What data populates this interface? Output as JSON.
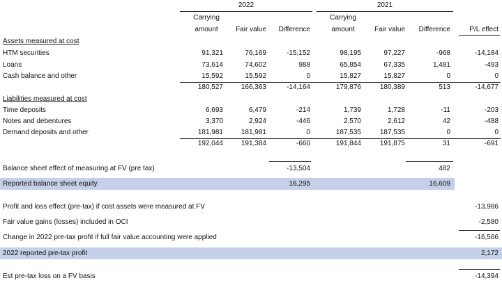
{
  "years": [
    "2022",
    "2021"
  ],
  "column_headers": {
    "carrying_1": "Carrying",
    "carrying_2": "amount",
    "fair_value": "Fair value",
    "difference": "Difference",
    "pl_effect": "P/L effect"
  },
  "assets": {
    "title": "Assets measured at cost",
    "rows": [
      {
        "label": "HTM securities",
        "y22": [
          "91,321",
          "76,169",
          "-15,152"
        ],
        "y21": [
          "98,195",
          "97,227",
          "-968"
        ],
        "pl": "-14,184"
      },
      {
        "label": "Loans",
        "y22": [
          "73,614",
          "74,602",
          "988"
        ],
        "y21": [
          "65,854",
          "67,335",
          "1,481"
        ],
        "pl": "-493"
      },
      {
        "label": "Cash balance and other",
        "y22": [
          "15,592",
          "15,592",
          "0"
        ],
        "y21": [
          "15,827",
          "15,827",
          "0"
        ],
        "pl": "0"
      }
    ],
    "total": {
      "y22": [
        "180,527",
        "166,363",
        "-14,164"
      ],
      "y21": [
        "179,876",
        "180,389",
        "513"
      ],
      "pl": "-14,677"
    }
  },
  "liabilities": {
    "title": "Liabilities measured at cost",
    "rows": [
      {
        "label": "Time deposits",
        "y22": [
          "6,693",
          "6,479",
          "-214"
        ],
        "y21": [
          "1,739",
          "1,728",
          "-11"
        ],
        "pl": "-203"
      },
      {
        "label": "Notes and debentures",
        "y22": [
          "3,370",
          "2,924",
          "-446"
        ],
        "y21": [
          "2,570",
          "2,612",
          "42"
        ],
        "pl": "-488"
      },
      {
        "label": "Demand deposits and other",
        "y22": [
          "181,981",
          "181,981",
          "0"
        ],
        "y21": [
          "187,535",
          "187,535",
          "0"
        ],
        "pl": "0"
      }
    ],
    "total": {
      "y22": [
        "192,044",
        "191,384",
        "-660"
      ],
      "y21": [
        "191,844",
        "191,875",
        "31"
      ],
      "pl": "-691"
    }
  },
  "balance_sheet": {
    "effect_label": "Balance sheet effect of measuring at FV (pre tax)",
    "effect_2022": "-13,504",
    "effect_2021": "482",
    "equity_label": "Reported balance sheet equity",
    "equity_2022": "16,295",
    "equity_2021": "16,609"
  },
  "profit_loss": {
    "rows": [
      {
        "label": "Profit and loss effect (pre-tax) if cost assets were measured at FV",
        "value": "-13,986"
      },
      {
        "label": "Fair value gains (losses) included in OCI",
        "value": "-2,580"
      },
      {
        "label": "Change in 2022 pre-tax profit if full fair value accounting were applied",
        "value": "-16,566"
      }
    ],
    "reported_label": "2022 reported pre-tax profit",
    "reported_value": "2,172",
    "est_label": "Est pre-tax loss on a FV basis",
    "est_value": "-14,394"
  },
  "colors": {
    "highlight": "#c3d0e7"
  }
}
